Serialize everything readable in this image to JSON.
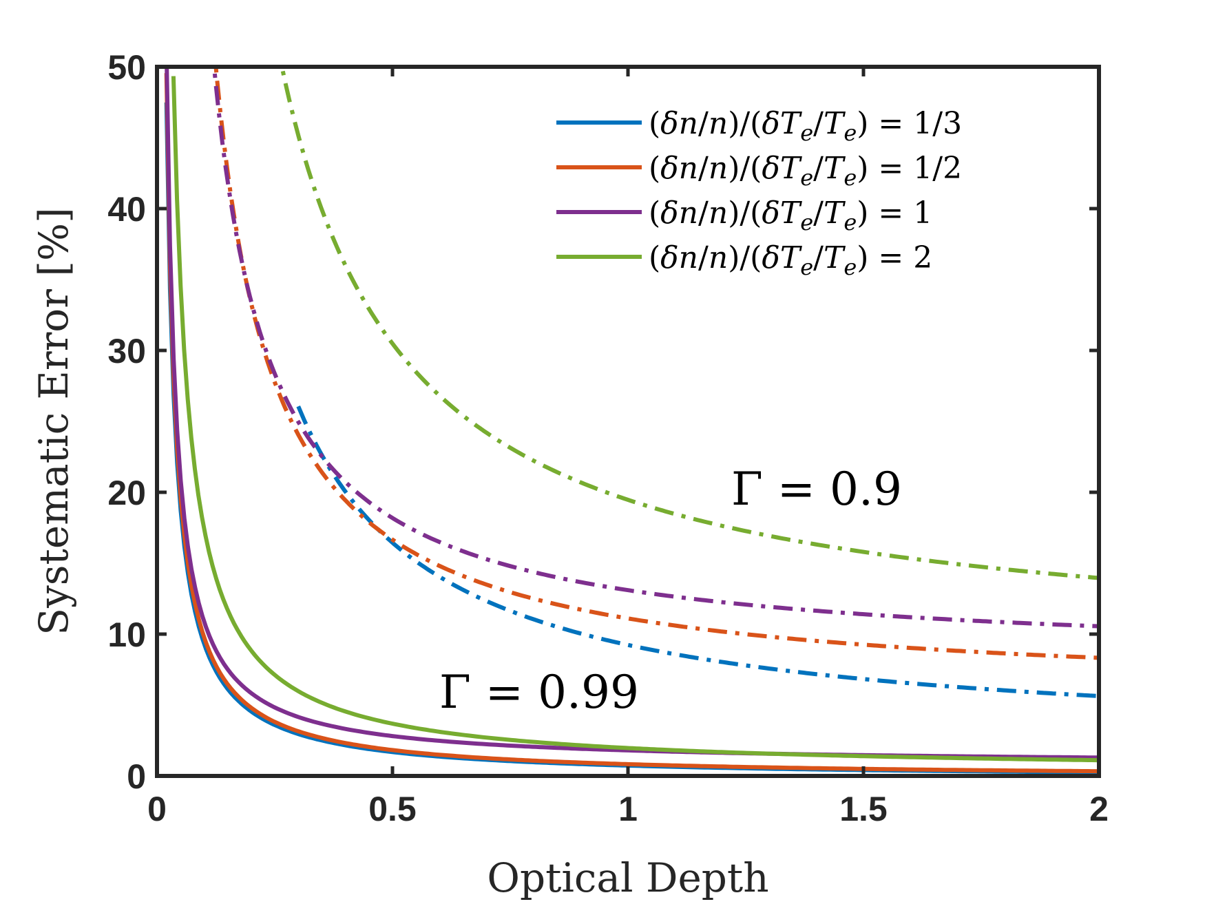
{
  "chart_data": {
    "type": "line",
    "xlabel": "Optical Depth",
    "ylabel": "Systematic Error [%]",
    "xlim": [
      0,
      2
    ],
    "ylim": [
      0,
      50
    ],
    "xticks": [
      0,
      0.5,
      1,
      1.5,
      2
    ],
    "xtick_labels": [
      "0",
      "0.5",
      "1",
      "1.5",
      "2"
    ],
    "yticks": [
      0,
      10,
      20,
      30,
      40,
      50
    ],
    "ytick_labels": [
      "0",
      "10",
      "20",
      "30",
      "40",
      "50"
    ],
    "grid": false,
    "legend_position": "top-right",
    "annotations": [
      {
        "text": "Γ = 0.9",
        "x": 1.42,
        "y": 20
      },
      {
        "text": "Γ = 0.99",
        "x": 0.82,
        "y": 6
      }
    ],
    "series": [
      {
        "name": "(δn/n)/(δTe/Te) = 1/3",
        "ratio": "1/3",
        "gamma": 0.99,
        "style": "solid",
        "color": "#0072BD",
        "x": [
          0.02,
          0.05,
          0.1,
          0.2,
          0.3,
          0.5,
          0.75,
          1.0,
          1.5,
          2.0
        ],
        "y": [
          48,
          18,
          8.5,
          4.2,
          2.9,
          1.9,
          1.4,
          1.1,
          0.75,
          0.55
        ]
      },
      {
        "name": "(δn/n)/(δTe/Te) = 1/2",
        "ratio": "1/2",
        "gamma": 0.99,
        "style": "solid",
        "color": "#D95319",
        "x": [
          0.02,
          0.05,
          0.1,
          0.2,
          0.3,
          0.5,
          0.75,
          1.0,
          1.5,
          2.0
        ],
        "y": [
          50,
          19,
          9.0,
          4.5,
          3.1,
          2.0,
          1.5,
          1.15,
          0.8,
          0.6
        ]
      },
      {
        "name": "(δn/n)/(δTe/Te) = 1",
        "ratio": "1",
        "gamma": 0.99,
        "style": "solid",
        "color": "#7E2F8E",
        "x": [
          0.02,
          0.05,
          0.1,
          0.2,
          0.3,
          0.5,
          0.75,
          1.0,
          1.5,
          2.0
        ],
        "y": [
          50,
          24,
          11.5,
          5.8,
          3.9,
          2.5,
          1.8,
          1.4,
          1.0,
          0.75
        ]
      },
      {
        "name": "(δn/n)/(δTe/Te) = 2",
        "ratio": "2",
        "gamma": 0.99,
        "style": "solid",
        "color": "#77AC30",
        "x": [
          0.035,
          0.05,
          0.1,
          0.2,
          0.3,
          0.5,
          0.75,
          1.0,
          1.5,
          2.0
        ],
        "y": [
          50,
          34,
          17,
          8.2,
          5.8,
          4.0,
          2.9,
          2.3,
          1.6,
          1.1
        ]
      },
      {
        "ratio": "1/3",
        "gamma": 0.9,
        "style": "dashdot",
        "color": "#0072BD",
        "x": [
          0.3,
          0.35,
          0.4,
          0.5,
          0.6,
          0.75,
          1.0,
          1.25,
          1.5,
          1.75,
          2.0
        ],
        "y": [
          26.5,
          22.5,
          19.5,
          16.0,
          13.9,
          12.0,
          10.2,
          8.5,
          6.9,
          5.8,
          4.7
        ]
      },
      {
        "ratio": "1/2",
        "gamma": 0.9,
        "style": "dashdot",
        "color": "#D95319",
        "x": [
          0.12,
          0.15,
          0.2,
          0.25,
          0.3,
          0.4,
          0.5,
          0.6,
          0.75,
          1.0,
          1.25,
          1.5,
          1.75,
          2.0
        ],
        "y": [
          48,
          42,
          35,
          30,
          27,
          22.5,
          18.5,
          16.0,
          13.4,
          10.8,
          8.9,
          7.4,
          6.2,
          5.1
        ]
      },
      {
        "ratio": "1",
        "gamma": 0.9,
        "style": "dashdot",
        "color": "#7E2F8E",
        "x": [
          0.11,
          0.15,
          0.2,
          0.25,
          0.3,
          0.4,
          0.5,
          0.6,
          0.75,
          1.0,
          1.25,
          1.5,
          1.75,
          2.0
        ],
        "y": [
          50,
          42,
          35.5,
          31,
          27.5,
          23.5,
          20.5,
          18.0,
          15.5,
          13.0,
          10.9,
          9.3,
          7.9,
          6.6
        ]
      },
      {
        "ratio": "2",
        "gamma": 0.9,
        "style": "dashdot",
        "color": "#77AC30",
        "x": [
          0.24,
          0.3,
          0.4,
          0.5,
          0.6,
          0.75,
          1.0,
          1.25,
          1.5,
          1.75,
          2.0
        ],
        "y": [
          50,
          45.5,
          38.5,
          33.5,
          29.5,
          25.5,
          21.0,
          17.5,
          14.5,
          12.0,
          9.7
        ]
      }
    ]
  }
}
